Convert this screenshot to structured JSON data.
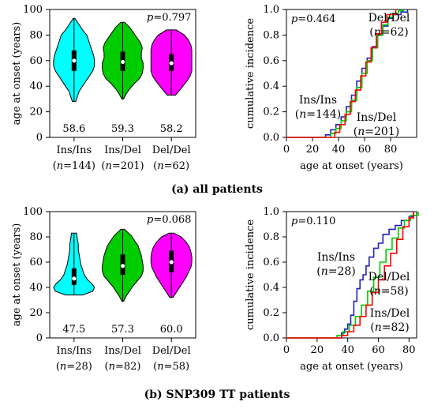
{
  "captions": {
    "a": "(a) all patients",
    "b": "(b) SNP309 TT patients"
  },
  "chart_data": [
    {
      "id": "a_violin",
      "type": "violin",
      "ylabel": "age at onset (years)",
      "ylim": [
        0,
        100
      ],
      "yticks": [
        "0",
        "20",
        "40",
        "60",
        "80",
        "100"
      ],
      "p_prefix": "p",
      "p_value": "=0.797",
      "categories": [
        {
          "name": "Ins/Ins",
          "n_label": "(n=144)",
          "color": "#00ffff",
          "mean_label": "58.6",
          "min": 28,
          "max": 93,
          "median": 60,
          "q1": 52,
          "q3": 68,
          "profile": [
            [
              28,
              2
            ],
            [
              32,
              4
            ],
            [
              36,
              6
            ],
            [
              40,
              10
            ],
            [
              44,
              14
            ],
            [
              48,
              18
            ],
            [
              52,
              22
            ],
            [
              56,
              24
            ],
            [
              60,
              24
            ],
            [
              64,
              23
            ],
            [
              68,
              21
            ],
            [
              72,
              19
            ],
            [
              76,
              17
            ],
            [
              80,
              15
            ],
            [
              84,
              10
            ],
            [
              88,
              6
            ],
            [
              93,
              1
            ]
          ]
        },
        {
          "name": "Ins/Del",
          "n_label": "(n=201)",
          "color": "#00cc00",
          "mean_label": "59.3",
          "min": 30,
          "max": 90,
          "median": 59,
          "q1": 52,
          "q3": 67,
          "profile": [
            [
              30,
              1
            ],
            [
              34,
              4
            ],
            [
              38,
              8
            ],
            [
              42,
              13
            ],
            [
              46,
              19
            ],
            [
              50,
              22
            ],
            [
              54,
              23
            ],
            [
              58,
              23
            ],
            [
              62,
              21
            ],
            [
              66,
              21
            ],
            [
              70,
              22
            ],
            [
              74,
              20
            ],
            [
              78,
              16
            ],
            [
              82,
              12
            ],
            [
              86,
              8
            ],
            [
              90,
              2
            ]
          ]
        },
        {
          "name": "Del/Del",
          "n_label": "(n=62)",
          "color": "#ff00ff",
          "mean_label": "58.2",
          "min": 33,
          "max": 84,
          "median": 58,
          "q1": 52,
          "q3": 65,
          "profile": [
            [
              33,
              5
            ],
            [
              36,
              9
            ],
            [
              40,
              14
            ],
            [
              44,
              19
            ],
            [
              48,
              23
            ],
            [
              52,
              25
            ],
            [
              56,
              25
            ],
            [
              60,
              25
            ],
            [
              64,
              25
            ],
            [
              68,
              25
            ],
            [
              72,
              24
            ],
            [
              76,
              21
            ],
            [
              80,
              16
            ],
            [
              84,
              6
            ]
          ]
        }
      ]
    },
    {
      "id": "a_cdf",
      "type": "line",
      "ylabel": "cumulative incidence",
      "xlabel": "age at onset (years)",
      "xlim": [
        0,
        100
      ],
      "ylim": [
        0,
        1
      ],
      "xticks": [
        "0",
        "20",
        "40",
        "60",
        "80"
      ],
      "yticks": [
        "0.0",
        "0.2",
        "0.4",
        "0.6",
        "0.8",
        "1.0"
      ],
      "p_prefix": "p",
      "p_value": "=0.464",
      "series": [
        {
          "name": "Ins/Ins",
          "n_label": "(n=144)",
          "color": "#2222bb",
          "points": [
            [
              28,
              0
            ],
            [
              30,
              0.02
            ],
            [
              34,
              0.06
            ],
            [
              38,
              0.1
            ],
            [
              42,
              0.16
            ],
            [
              46,
              0.24
            ],
            [
              50,
              0.33
            ],
            [
              54,
              0.44
            ],
            [
              58,
              0.54
            ],
            [
              62,
              0.62
            ],
            [
              66,
              0.71
            ],
            [
              70,
              0.8
            ],
            [
              74,
              0.87
            ],
            [
              78,
              0.93
            ],
            [
              82,
              0.96
            ],
            [
              88,
              0.98
            ],
            [
              93,
              1.0
            ]
          ]
        },
        {
          "name": "Ins/Del",
          "n_label": "(n=201)",
          "color": "#00cc00",
          "points": [
            [
              30,
              0
            ],
            [
              34,
              0.03
            ],
            [
              38,
              0.07
            ],
            [
              42,
              0.13
            ],
            [
              46,
              0.2
            ],
            [
              50,
              0.29
            ],
            [
              54,
              0.39
            ],
            [
              58,
              0.5
            ],
            [
              62,
              0.6
            ],
            [
              66,
              0.7
            ],
            [
              70,
              0.8
            ],
            [
              74,
              0.88
            ],
            [
              78,
              0.94
            ],
            [
              82,
              0.97
            ],
            [
              86,
              0.99
            ],
            [
              90,
              1.0
            ]
          ]
        },
        {
          "name": "Del/Del",
          "n_label": "(n=62)",
          "color": "#ff0000",
          "points": [
            [
              33,
              0
            ],
            [
              37,
              0.04
            ],
            [
              41,
              0.1
            ],
            [
              45,
              0.18
            ],
            [
              49,
              0.28
            ],
            [
              53,
              0.37
            ],
            [
              57,
              0.48
            ],
            [
              61,
              0.59
            ],
            [
              65,
              0.7
            ],
            [
              69,
              0.81
            ],
            [
              73,
              0.9
            ],
            [
              77,
              0.96
            ],
            [
              84,
              1.0
            ]
          ]
        }
      ]
    },
    {
      "id": "b_violin",
      "type": "violin",
      "ylabel": "age at onset (years)",
      "ylim": [
        0,
        100
      ],
      "yticks": [
        "0",
        "20",
        "40",
        "60",
        "80",
        "100"
      ],
      "p_prefix": "p",
      "p_value": "=0.068",
      "categories": [
        {
          "name": "Ins/Ins",
          "n_label": "(n=28)",
          "color": "#00ffff",
          "mean_label": "47.5",
          "min": 34,
          "max": 83,
          "median": 47,
          "q1": 42,
          "q3": 55,
          "profile": [
            [
              34,
              10
            ],
            [
              37,
              22
            ],
            [
              40,
              24
            ],
            [
              43,
              21
            ],
            [
              46,
              16
            ],
            [
              50,
              12
            ],
            [
              54,
              10
            ],
            [
              58,
              8
            ],
            [
              62,
              7
            ],
            [
              66,
              6
            ],
            [
              70,
              5
            ],
            [
              74,
              5
            ],
            [
              78,
              4
            ],
            [
              83,
              3
            ]
          ]
        },
        {
          "name": "Ins/Del",
          "n_label": "(n=82)",
          "color": "#00cc00",
          "mean_label": "57.3",
          "min": 29,
          "max": 86,
          "median": 57,
          "q1": 50,
          "q3": 66,
          "profile": [
            [
              29,
              1
            ],
            [
              33,
              4
            ],
            [
              37,
              8
            ],
            [
              41,
              12
            ],
            [
              45,
              17
            ],
            [
              49,
              22
            ],
            [
              53,
              24
            ],
            [
              57,
              24
            ],
            [
              61,
              23
            ],
            [
              65,
              22
            ],
            [
              69,
              20
            ],
            [
              73,
              18
            ],
            [
              77,
              14
            ],
            [
              81,
              10
            ],
            [
              86,
              2
            ]
          ]
        },
        {
          "name": "Del/Del",
          "n_label": "(n=58)",
          "color": "#ff00ff",
          "mean_label": "60.0",
          "min": 32,
          "max": 83,
          "median": 60,
          "q1": 52,
          "q3": 69,
          "profile": [
            [
              32,
              2
            ],
            [
              36,
              6
            ],
            [
              40,
              10
            ],
            [
              44,
              14
            ],
            [
              48,
              18
            ],
            [
              52,
              21
            ],
            [
              56,
              24
            ],
            [
              60,
              25
            ],
            [
              64,
              25
            ],
            [
              68,
              24
            ],
            [
              72,
              22
            ],
            [
              76,
              18
            ],
            [
              80,
              12
            ],
            [
              83,
              3
            ]
          ]
        }
      ]
    },
    {
      "id": "b_cdf",
      "type": "line",
      "ylabel": "cumulative incidence",
      "xlabel": "age at onset (years)",
      "xlim": [
        0,
        85
      ],
      "ylim": [
        0,
        1
      ],
      "xticks": [
        "0",
        "20",
        "40",
        "60",
        "80"
      ],
      "yticks": [
        "0.0",
        "0.2",
        "0.4",
        "0.6",
        "0.8",
        "1.0"
      ],
      "p_prefix": "p",
      "p_value": "=0.110",
      "series": [
        {
          "name": "Ins/Ins",
          "n_label": "(n=28)",
          "color": "#2222bb",
          "points": [
            [
              34,
              0
            ],
            [
              36,
              0.04
            ],
            [
              38,
              0.07
            ],
            [
              40,
              0.11
            ],
            [
              42,
              0.18
            ],
            [
              44,
              0.29
            ],
            [
              46,
              0.39
            ],
            [
              48,
              0.46
            ],
            [
              50,
              0.5
            ],
            [
              52,
              0.57
            ],
            [
              54,
              0.64
            ],
            [
              57,
              0.71
            ],
            [
              60,
              0.75
            ],
            [
              63,
              0.82
            ],
            [
              67,
              0.86
            ],
            [
              71,
              0.89
            ],
            [
              75,
              0.93
            ],
            [
              80,
              0.96
            ],
            [
              83,
              1.0
            ]
          ]
        },
        {
          "name": "Ins/Del",
          "n_label": "(n=82)",
          "color": "#00cc00",
          "points": [
            [
              29,
              0
            ],
            [
              33,
              0.02
            ],
            [
              37,
              0.05
            ],
            [
              41,
              0.1
            ],
            [
              45,
              0.17
            ],
            [
              49,
              0.26
            ],
            [
              53,
              0.37
            ],
            [
              57,
              0.48
            ],
            [
              61,
              0.6
            ],
            [
              65,
              0.7
            ],
            [
              69,
              0.79
            ],
            [
              73,
              0.87
            ],
            [
              77,
              0.93
            ],
            [
              81,
              0.97
            ],
            [
              86,
              1.0
            ]
          ]
        },
        {
          "name": "Del/Del",
          "n_label": "(n=58)",
          "color": "#ff0000",
          "points": [
            [
              32,
              0
            ],
            [
              36,
              0.02
            ],
            [
              40,
              0.05
            ],
            [
              44,
              0.1
            ],
            [
              48,
              0.17
            ],
            [
              52,
              0.26
            ],
            [
              56,
              0.36
            ],
            [
              60,
              0.46
            ],
            [
              64,
              0.57
            ],
            [
              68,
              0.67
            ],
            [
              72,
              0.78
            ],
            [
              76,
              0.88
            ],
            [
              80,
              0.95
            ],
            [
              83,
              1.0
            ]
          ]
        }
      ]
    }
  ]
}
